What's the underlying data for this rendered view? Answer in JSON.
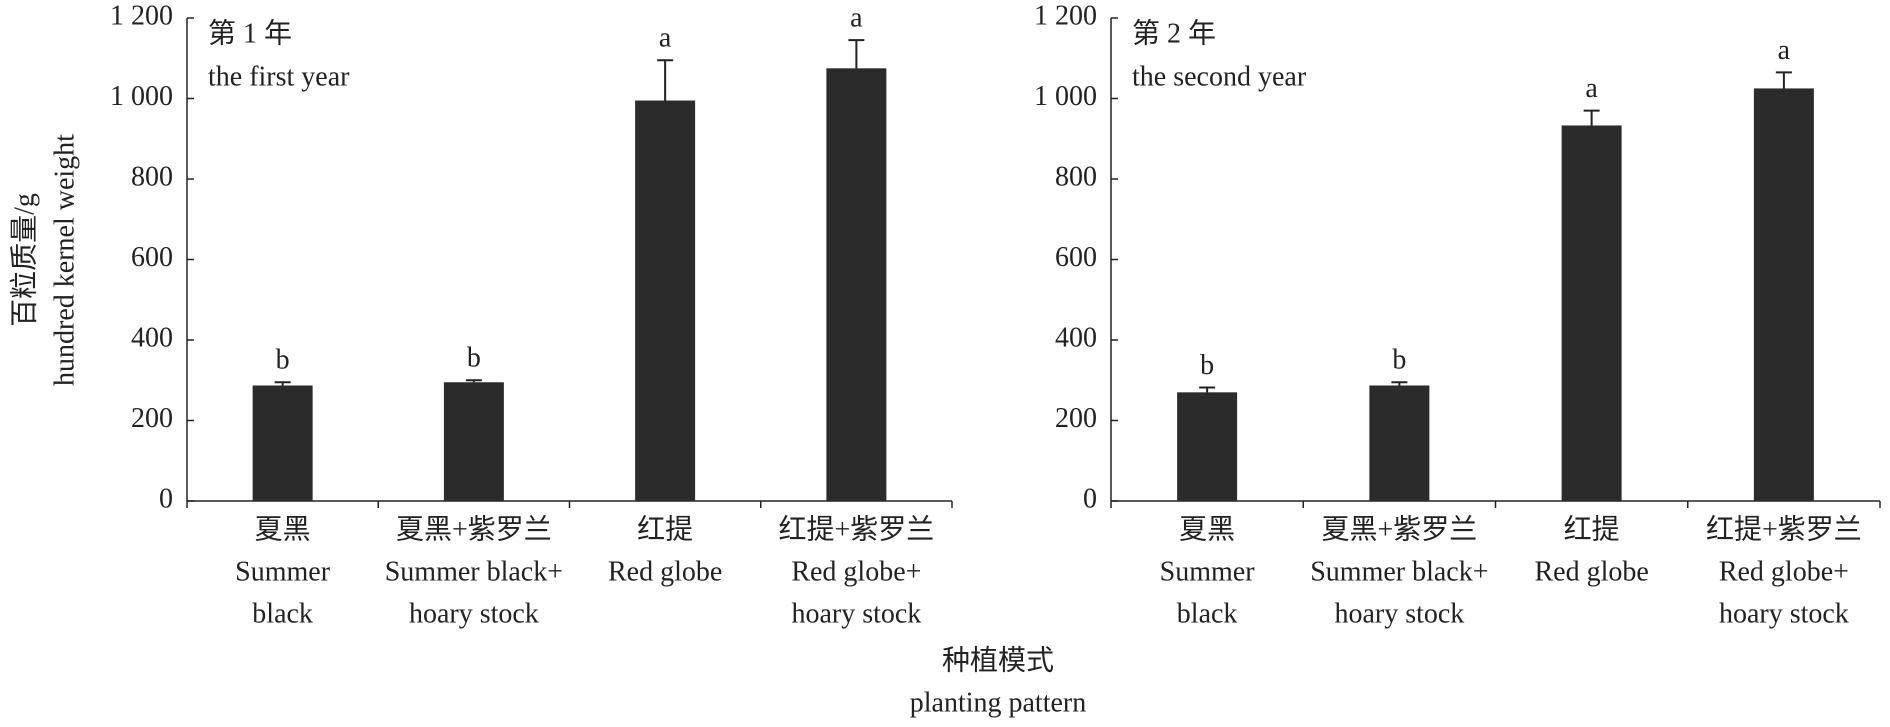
{
  "chart_data": [
    {
      "type": "bar",
      "annotation": [
        "第 1 年",
        "the first year"
      ],
      "ylabel": [
        "百粒质量/g",
        "hundred kernel weight"
      ],
      "xlabel": [
        "种植模式",
        "planting pattern"
      ],
      "categories": [
        [
          "夏黑",
          "Summer",
          "black"
        ],
        [
          "夏黑+紫罗兰",
          "Summer black+",
          "hoary stock"
        ],
        [
          "红提",
          "Red globe"
        ],
        [
          "红提+紫罗兰",
          "Red globe+",
          "hoary stock"
        ]
      ],
      "values": [
        287,
        295,
        995,
        1075
      ],
      "errors": [
        8,
        5,
        100,
        70
      ],
      "letters": [
        "b",
        "b",
        "a",
        "a"
      ],
      "color": "#2b2b2b",
      "ylim": [
        0,
        1200
      ],
      "yticks": [
        0,
        200,
        400,
        600,
        800,
        {
          "value": 1000,
          "label": "1 000"
        },
        {
          "value": 1200,
          "label": "1 200"
        }
      ]
    },
    {
      "type": "bar",
      "annotation": [
        "第 2 年",
        "the second year"
      ],
      "categories": [
        [
          "夏黑",
          "Summer",
          "black"
        ],
        [
          "夏黑+紫罗兰",
          "Summer black+",
          "hoary stock"
        ],
        [
          "红提",
          "Red globe"
        ],
        [
          "红提+紫罗兰",
          "Red globe+",
          "hoary stock"
        ]
      ],
      "values": [
        270,
        287,
        933,
        1025
      ],
      "errors": [
        12,
        8,
        37,
        40
      ],
      "letters": [
        "b",
        "b",
        "a",
        "a"
      ],
      "color": "#2b2b2b",
      "ylim": [
        0,
        1200
      ],
      "yticks": [
        0,
        200,
        400,
        600,
        800,
        {
          "value": 1000,
          "label": "1 000"
        },
        {
          "value": 1200,
          "label": "1 200"
        }
      ]
    }
  ]
}
